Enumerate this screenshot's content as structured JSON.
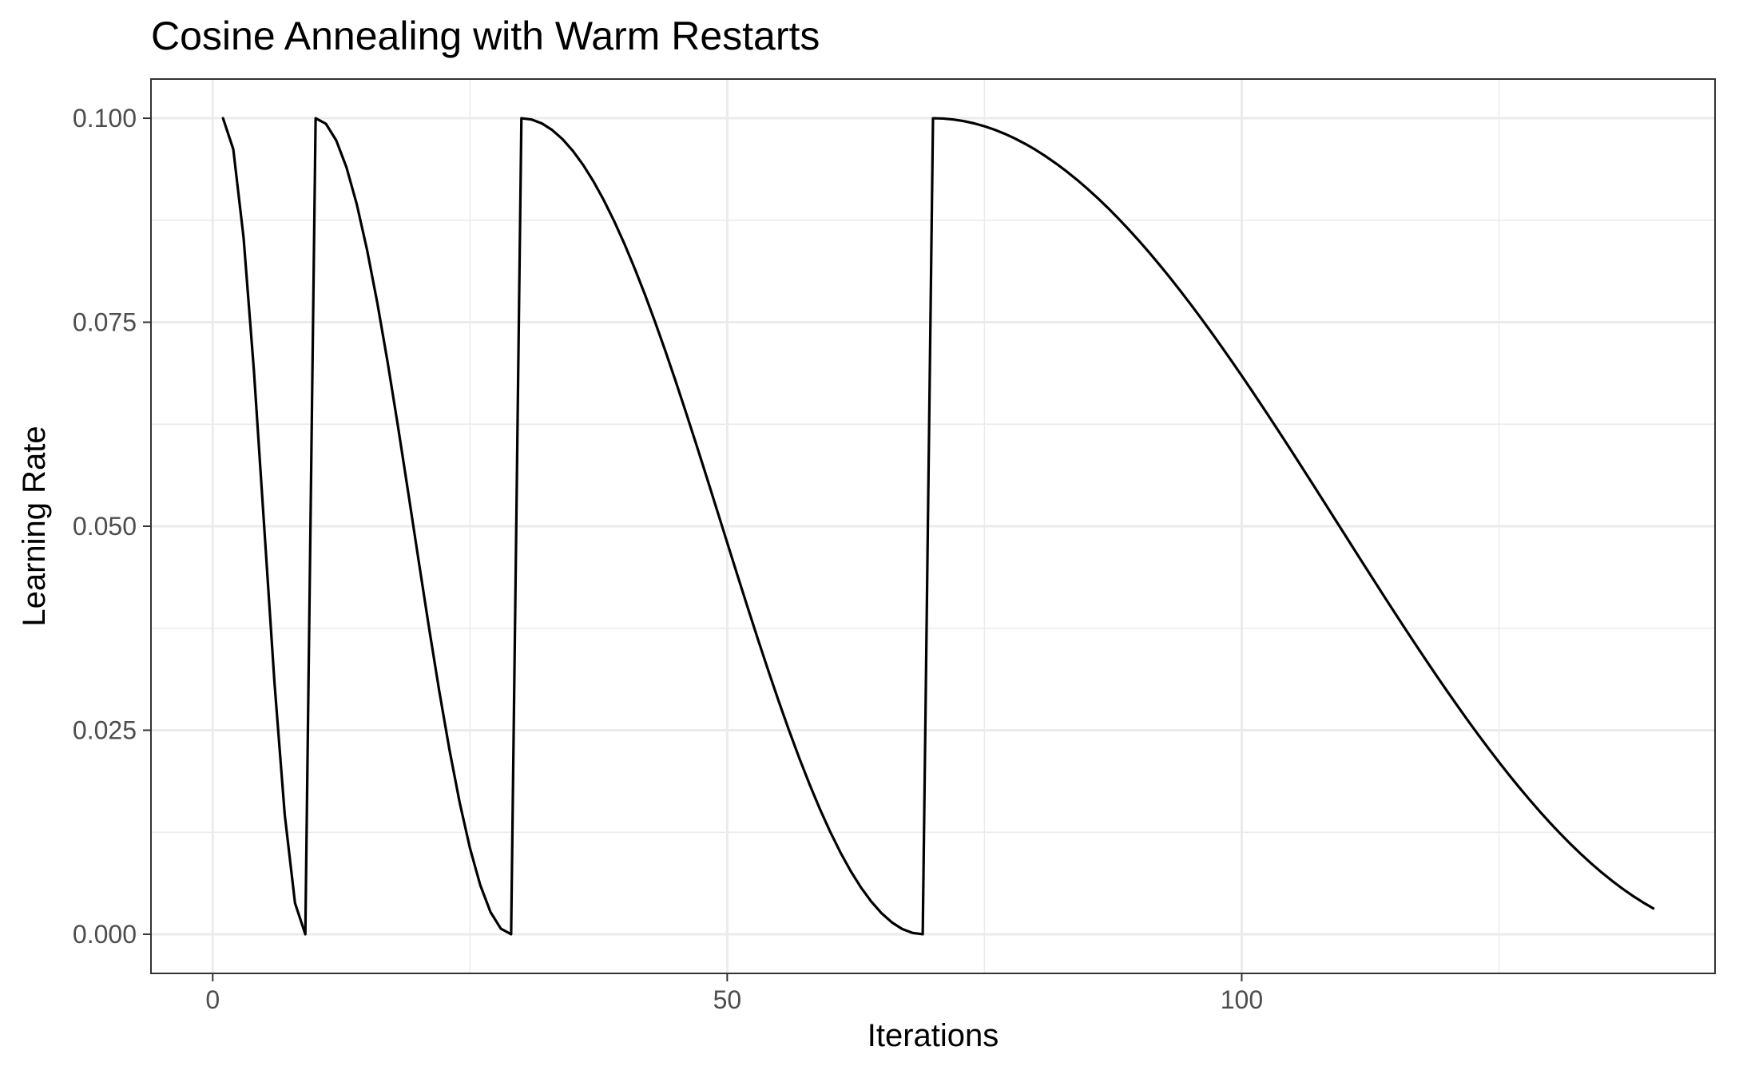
{
  "chart_data": {
    "type": "line",
    "title": "Cosine Annealing with Warm Restarts",
    "xlabel": "Iterations",
    "ylabel": "Learning Rate",
    "xlim": [
      -6,
      146
    ],
    "ylim": [
      -0.0048,
      0.1048
    ],
    "x_ticks": [
      0,
      50,
      100
    ],
    "x_tick_labels": [
      "0",
      "50",
      "100"
    ],
    "x_minor_ticks": [
      25,
      75,
      125
    ],
    "y_ticks": [
      0,
      0.025,
      0.05,
      0.075,
      0.1
    ],
    "y_tick_labels": [
      "0.000",
      "0.025",
      "0.050",
      "0.075",
      "0.100"
    ],
    "y_minor_ticks": [
      0.0125,
      0.0375,
      0.0625,
      0.0875
    ],
    "grid": true,
    "legend": "none",
    "line_color": "#000000",
    "schedule": {
      "eta_max": 0.1,
      "eta_min": 0,
      "first_iteration": 1,
      "last_iteration": 140,
      "cycle_starts": [
        1,
        10,
        30,
        70
      ],
      "cycle_lengths": [
        9,
        20,
        40,
        80
      ]
    },
    "series": [
      {
        "values_note_x": "iterations 1..140",
        "x": [],
        "y": []
      }
    ]
  }
}
